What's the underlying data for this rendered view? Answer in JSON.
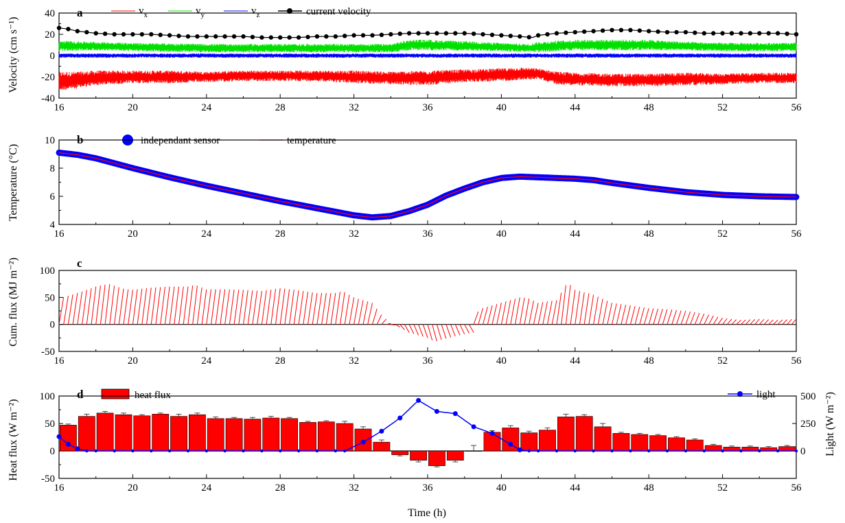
{
  "figure": {
    "xlabel": "Time  (h)",
    "x_ticks": [
      "16",
      "20",
      "24",
      "28",
      "32",
      "36",
      "40",
      "44",
      "48",
      "52",
      "56"
    ]
  },
  "chart_data": [
    {
      "panel": "a",
      "type": "line",
      "ylabel": "Velocity  (cm s⁻¹)",
      "xlim": [
        16,
        56
      ],
      "ylim": [
        -40,
        40
      ],
      "y_ticks": [
        "-40",
        "-20",
        "0",
        "20",
        "40"
      ],
      "legend": {
        "placement": "top",
        "entries": [
          "vx",
          "vy",
          "vz",
          "current velocity"
        ]
      },
      "series": [
        {
          "name": "vx",
          "label_base": "v",
          "label_sub": "x",
          "color": "#ff0000",
          "style": "noisy band",
          "x": [
            16,
            17,
            18,
            20,
            22,
            24,
            26,
            28,
            30,
            32,
            34,
            36,
            38,
            40,
            41,
            42,
            43,
            44,
            46,
            48,
            50,
            52,
            54,
            56
          ],
          "y": [
            -24,
            -23,
            -21,
            -20,
            -20,
            -20,
            -19,
            -19,
            -19,
            -20,
            -21,
            -21,
            -19,
            -18,
            -17,
            -17,
            -21,
            -22,
            -23,
            -23,
            -22,
            -22,
            -21,
            -21
          ],
          "amplitude": [
            9,
            8,
            7,
            6,
            6,
            5,
            5,
            5,
            5,
            6,
            6,
            7,
            6,
            6,
            6,
            5,
            6,
            6,
            6,
            6,
            6,
            5,
            5,
            5
          ]
        },
        {
          "name": "vy",
          "label_base": "v",
          "label_sub": "y",
          "color": "#00e000",
          "style": "noisy band",
          "x": [
            16,
            18,
            20,
            24,
            28,
            32,
            34,
            35,
            36,
            40,
            41.5,
            42,
            44,
            46,
            48,
            50,
            52,
            54,
            56
          ],
          "y": [
            9,
            9,
            8,
            7,
            7,
            7,
            7,
            10,
            10,
            8,
            7,
            8,
            10,
            10,
            10,
            9,
            8,
            8,
            8
          ],
          "amplitude": [
            5,
            4,
            4,
            4,
            4,
            4,
            4,
            5,
            5,
            4,
            4,
            5,
            5,
            5,
            5,
            4,
            4,
            4,
            4
          ]
        },
        {
          "name": "vz",
          "label_base": "v",
          "label_sub": "z",
          "color": "#0000ff",
          "style": "noisy band",
          "x": [
            16,
            56
          ],
          "y": [
            0,
            0
          ],
          "amplitude": [
            2,
            2
          ]
        },
        {
          "name": "current velocity",
          "color": "#000000",
          "style": "line+markers",
          "x": [
            16,
            16.5,
            17,
            17.5,
            18,
            19,
            20,
            21,
            22,
            23,
            24,
            25,
            26,
            27,
            28,
            29,
            30,
            31,
            32,
            33,
            34,
            35,
            36,
            37,
            38,
            39,
            40,
            41,
            41.7,
            42,
            42.5,
            43,
            44,
            45,
            46,
            47,
            48,
            49,
            50,
            51,
            52,
            53,
            54,
            55,
            56
          ],
          "y": [
            26,
            25,
            23,
            22,
            21,
            20,
            20,
            20,
            19,
            18,
            18,
            18,
            18,
            17,
            17,
            17,
            18,
            18,
            19,
            19,
            20,
            21,
            21,
            21,
            21,
            20,
            19,
            18,
            17,
            19,
            20,
            21,
            22,
            23,
            24,
            24,
            23,
            22,
            22,
            21,
            21,
            21,
            21,
            21,
            20
          ]
        }
      ]
    },
    {
      "panel": "b",
      "type": "line",
      "ylabel": "Temperature  (°C)",
      "xlim": [
        16,
        56
      ],
      "ylim": [
        4,
        10
      ],
      "y_ticks": [
        "4",
        "6",
        "8",
        "10"
      ],
      "legend": {
        "placement": "top",
        "entries": [
          "independant sensor",
          "temperature"
        ]
      },
      "series": [
        {
          "name": "independant sensor",
          "color": "#0000ff",
          "style": "dense markers",
          "x": [
            16,
            17,
            18,
            20,
            22,
            24,
            26,
            28,
            30,
            32,
            33,
            34,
            35,
            36,
            37,
            38,
            39,
            40,
            41,
            42,
            44,
            45,
            46,
            48,
            50,
            52,
            54,
            56
          ],
          "y": [
            9.1,
            8.95,
            8.7,
            8.0,
            7.35,
            6.75,
            6.2,
            5.65,
            5.15,
            4.65,
            4.5,
            4.6,
            4.95,
            5.4,
            6.05,
            6.55,
            7.0,
            7.3,
            7.4,
            7.35,
            7.25,
            7.15,
            6.95,
            6.6,
            6.3,
            6.1,
            6.0,
            5.95
          ]
        },
        {
          "name": "temperature",
          "color": "#ff0000",
          "style": "line",
          "x": [
            16,
            17,
            18,
            20,
            22,
            24,
            26,
            28,
            30,
            32,
            33,
            34,
            35,
            36,
            37,
            38,
            39,
            40,
            41,
            42,
            44,
            45,
            46,
            48,
            50,
            52,
            54,
            56
          ],
          "y": [
            9.1,
            8.95,
            8.7,
            8.0,
            7.35,
            6.75,
            6.2,
            5.65,
            5.15,
            4.65,
            4.5,
            4.6,
            4.95,
            5.4,
            6.05,
            6.55,
            7.0,
            7.3,
            7.4,
            7.35,
            7.25,
            7.15,
            6.95,
            6.6,
            6.3,
            6.1,
            6.0,
            5.95
          ]
        }
      ]
    },
    {
      "panel": "c",
      "type": "line",
      "ylabel": "Cum. flux  (MJ m⁻²)",
      "xlim": [
        16,
        56
      ],
      "ylim": [
        -50,
        100
      ],
      "y_ticks": [
        "-50",
        "0",
        "50",
        "100"
      ],
      "segment_hours": 0.25,
      "series": [
        {
          "name": "",
          "color": "#ff0000",
          "style": "sawtooth (cumulative flux per burst period)",
          "x": [
            16,
            17,
            18,
            18.7,
            19.5,
            20,
            21,
            22,
            23,
            23.4,
            24,
            25,
            26,
            27,
            28,
            29,
            30,
            31,
            31.4,
            32,
            33,
            33.5,
            34,
            34.5,
            35,
            36,
            36.4,
            36.8,
            37.5,
            38,
            38.5,
            38.6,
            39,
            40,
            41,
            41.5,
            42,
            43,
            43.6,
            44,
            45,
            46,
            47,
            48,
            49,
            50,
            51,
            52,
            53,
            54,
            55,
            56
          ],
          "y": [
            48,
            58,
            70,
            75,
            66,
            64,
            68,
            70,
            70,
            73,
            65,
            65,
            64,
            62,
            67,
            63,
            58,
            58,
            62,
            50,
            40,
            18,
            2,
            -5,
            -15,
            -25,
            -32,
            -28,
            -22,
            -18,
            -15,
            20,
            30,
            40,
            50,
            48,
            40,
            45,
            78,
            64,
            55,
            40,
            35,
            30,
            28,
            25,
            20,
            12,
            8,
            10,
            8,
            10
          ]
        }
      ]
    },
    {
      "panel": "d",
      "type": "bar",
      "ylabel": "Heat flux  (W m⁻²)",
      "ylabel_right": "Light  (W m⁻²)",
      "xlim": [
        16,
        56
      ],
      "ylim": [
        -50,
        100
      ],
      "ylim_right": [
        0,
        500
      ],
      "y_ticks": [
        "-50",
        "0",
        "50",
        "100"
      ],
      "y2_ticks": [
        "0",
        "250",
        "500"
      ],
      "legend": {
        "entries": [
          "heat flux",
          "light"
        ],
        "placement": "heat flux: top-left; light: top-right"
      },
      "x_bar": [
        16.5,
        17.5,
        18.5,
        19.5,
        20.5,
        21.5,
        22.5,
        23.5,
        24.5,
        25.5,
        26.5,
        27.5,
        28.5,
        29.5,
        30.5,
        31.5,
        32.5,
        33.5,
        34.5,
        35.5,
        36.5,
        37.5,
        38.5,
        39.5,
        40.5,
        41.5,
        42.5,
        43.5,
        44.5,
        45.5,
        46.5,
        47.5,
        48.5,
        49.5,
        50.5,
        51.5,
        52.5,
        53.5,
        54.5,
        55.5
      ],
      "series": [
        {
          "name": "heat flux",
          "color": "#ff0000",
          "style": "bars with error bars",
          "values": [
            47,
            63,
            69,
            66,
            64,
            67,
            63,
            66,
            59,
            59,
            58,
            60,
            59,
            52,
            53,
            50,
            40,
            16,
            -7,
            -17,
            -27,
            -17,
            0,
            34,
            42,
            33,
            38,
            62,
            63,
            44,
            32,
            30,
            28,
            24,
            20,
            10,
            7,
            7,
            6,
            8
          ],
          "errors": [
            2,
            4,
            3,
            3,
            2,
            2,
            4,
            3,
            3,
            2,
            3,
            3,
            2,
            2,
            2,
            4,
            4,
            4,
            2,
            3,
            2,
            3,
            10,
            3,
            4,
            3,
            4,
            5,
            3,
            6,
            2,
            2,
            2,
            2,
            2,
            2,
            2,
            2,
            2,
            2
          ]
        },
        {
          "name": "light",
          "color": "#0000ff",
          "axis": "right",
          "style": "line+markers",
          "x": [
            16,
            16.5,
            17,
            17.5,
            18,
            19,
            20,
            21,
            22,
            23,
            24,
            25,
            26,
            27,
            28,
            29,
            30,
            31,
            31.5,
            32.5,
            33.5,
            34.5,
            35.5,
            36.5,
            37.5,
            38.5,
            39.5,
            40.5,
            41,
            41.5,
            42,
            43,
            44,
            45,
            46,
            47,
            48,
            49,
            50,
            51,
            52,
            53,
            54,
            55,
            56
          ],
          "y": [
            130,
            60,
            20,
            0,
            0,
            0,
            0,
            0,
            0,
            0,
            0,
            0,
            0,
            0,
            0,
            0,
            0,
            0,
            0,
            80,
            180,
            300,
            460,
            360,
            340,
            220,
            160,
            60,
            10,
            0,
            0,
            0,
            0,
            0,
            0,
            0,
            0,
            0,
            0,
            0,
            0,
            0,
            0,
            0,
            0
          ]
        }
      ]
    }
  ]
}
